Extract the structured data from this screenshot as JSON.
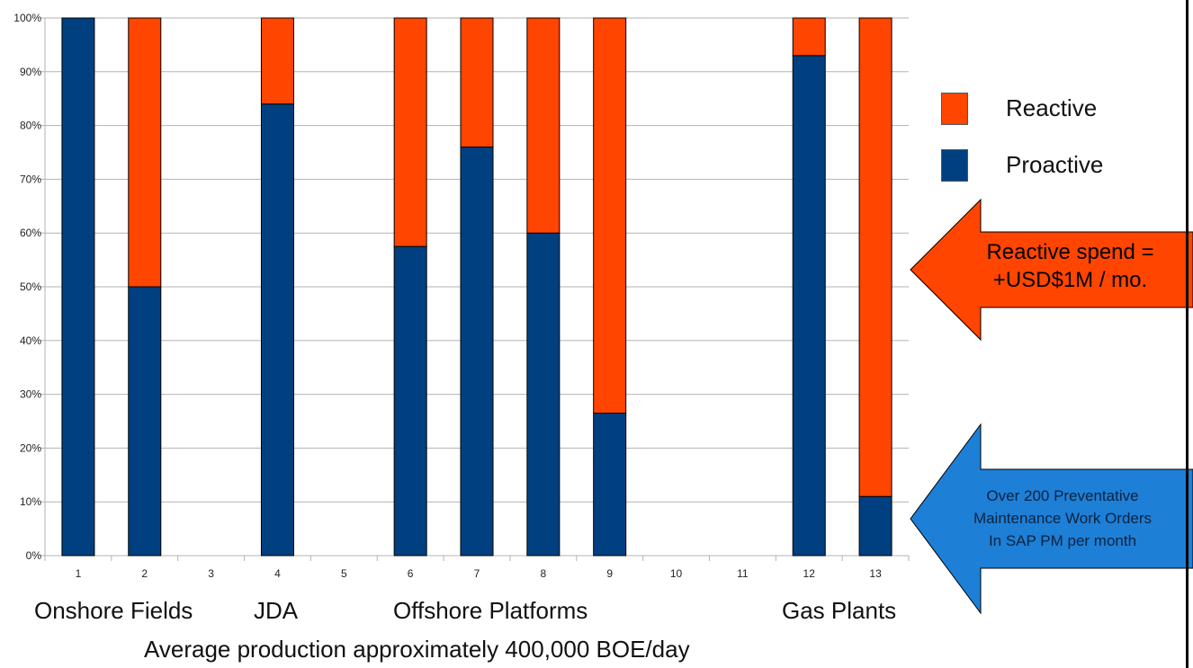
{
  "chart_data": {
    "type": "bar",
    "stacked": true,
    "categories": [
      "1",
      "2",
      "3",
      "4",
      "5",
      "6",
      "7",
      "8",
      "9",
      "10",
      "11",
      "12",
      "13"
    ],
    "series": [
      {
        "name": "Proactive",
        "color": "#004080",
        "values": [
          100,
          50,
          null,
          84,
          null,
          57.5,
          76,
          60,
          26.5,
          null,
          null,
          93,
          11
        ]
      },
      {
        "name": "Reactive",
        "color": "#ff4500",
        "values": [
          0,
          50,
          null,
          16,
          null,
          42.5,
          24,
          40,
          73.5,
          null,
          null,
          7,
          89
        ]
      }
    ],
    "yticks": [
      "0%",
      "10%",
      "20%",
      "30%",
      "40%",
      "50%",
      "60%",
      "70%",
      "80%",
      "90%",
      "100%"
    ],
    "ylim": [
      0,
      100
    ],
    "grid": true,
    "legend_position": "right",
    "group_labels": [
      "Onshore Fields",
      "JDA",
      "Offshore Platforms",
      "Gas Plants"
    ],
    "xlabel": "Average production approximately  400,000  BOE/day"
  },
  "annotations": {
    "reactive_callout": {
      "line1": "Reactive spend =",
      "line2": "+USD$1M / mo.",
      "color": "#ff4500"
    },
    "proactive_callout": {
      "line1": "Over 200 Preventative",
      "line2": "Maintenance Work Orders",
      "line3": "In SAP PM per month",
      "color": "#1e7fd6"
    }
  }
}
